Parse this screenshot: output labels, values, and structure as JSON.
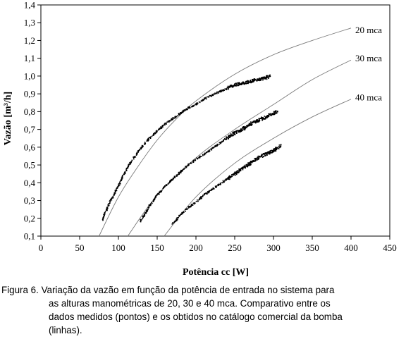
{
  "chart_data": {
    "type": "scatter",
    "xlabel": "Potência cc [W]",
    "ylabel": "Vazão [m³/h]",
    "xlim": [
      0,
      450
    ],
    "ylim": [
      0.1,
      1.4
    ],
    "x_ticks": [
      "0",
      "50",
      "100",
      "150",
      "200",
      "250",
      "300",
      "350",
      "400",
      "450"
    ],
    "y_ticks": [
      "0,1",
      "0,2",
      "0,3",
      "0,4",
      "0,5",
      "0,6",
      "0,7",
      "0,8",
      "0,9",
      "1,0",
      "1,1",
      "1,2",
      "1,3",
      "1,4"
    ],
    "grid": false,
    "legend": "none",
    "series": [
      {
        "name": "20 mca",
        "kind": "catalog-line",
        "x": [
          75,
          100,
          125,
          150,
          175,
          200,
          250,
          300,
          350,
          400
        ],
        "y": [
          0.1,
          0.32,
          0.49,
          0.64,
          0.76,
          0.86,
          1.01,
          1.12,
          1.2,
          1.27
        ]
      },
      {
        "name": "30 mca",
        "kind": "catalog-line",
        "x": [
          112,
          150,
          200,
          250,
          300,
          350,
          400
        ],
        "y": [
          0.1,
          0.33,
          0.54,
          0.7,
          0.84,
          0.98,
          1.09
        ]
      },
      {
        "name": "40 mca",
        "kind": "catalog-line",
        "x": [
          159,
          200,
          250,
          300,
          350,
          400
        ],
        "y": [
          0.1,
          0.32,
          0.51,
          0.65,
          0.77,
          0.87
        ]
      },
      {
        "name": "20 mca",
        "kind": "measured-points",
        "x": [
          79,
          85,
          90,
          95,
          100,
          105,
          110,
          115,
          120,
          125,
          130,
          140,
          150,
          160,
          170,
          180,
          190,
          200,
          210,
          220,
          230,
          240,
          250,
          260,
          270,
          280,
          290,
          295
        ],
        "y": [
          0.19,
          0.25,
          0.3,
          0.34,
          0.38,
          0.43,
          0.47,
          0.51,
          0.54,
          0.57,
          0.6,
          0.65,
          0.69,
          0.73,
          0.76,
          0.79,
          0.82,
          0.84,
          0.87,
          0.89,
          0.91,
          0.93,
          0.95,
          0.96,
          0.97,
          0.98,
          0.99,
          1.0
        ]
      },
      {
        "name": "30 mca",
        "kind": "measured-points",
        "x": [
          128,
          135,
          140,
          150,
          160,
          170,
          180,
          190,
          200,
          210,
          220,
          230,
          240,
          250,
          260,
          270,
          280,
          290,
          300,
          305
        ],
        "y": [
          0.18,
          0.23,
          0.27,
          0.33,
          0.38,
          0.42,
          0.46,
          0.5,
          0.53,
          0.56,
          0.59,
          0.62,
          0.65,
          0.68,
          0.7,
          0.73,
          0.75,
          0.77,
          0.79,
          0.8
        ]
      },
      {
        "name": "40 mca",
        "kind": "measured-points",
        "x": [
          170,
          175,
          180,
          190,
          200,
          210,
          220,
          230,
          240,
          250,
          260,
          270,
          280,
          290,
          300,
          310
        ],
        "y": [
          0.17,
          0.19,
          0.22,
          0.26,
          0.29,
          0.33,
          0.36,
          0.39,
          0.42,
          0.45,
          0.48,
          0.51,
          0.54,
          0.56,
          0.58,
          0.61
        ]
      }
    ]
  },
  "caption": {
    "line1": "Figura 6. Variação da vazão em função da potência de entrada no sistema para",
    "line2": "as alturas manométricas de 20, 30 e 40 mca. Comparativo entre os",
    "line3": "dados medidos (pontos) e os  obtidos no catálogo comercial da bomba",
    "line4": "(linhas)."
  }
}
